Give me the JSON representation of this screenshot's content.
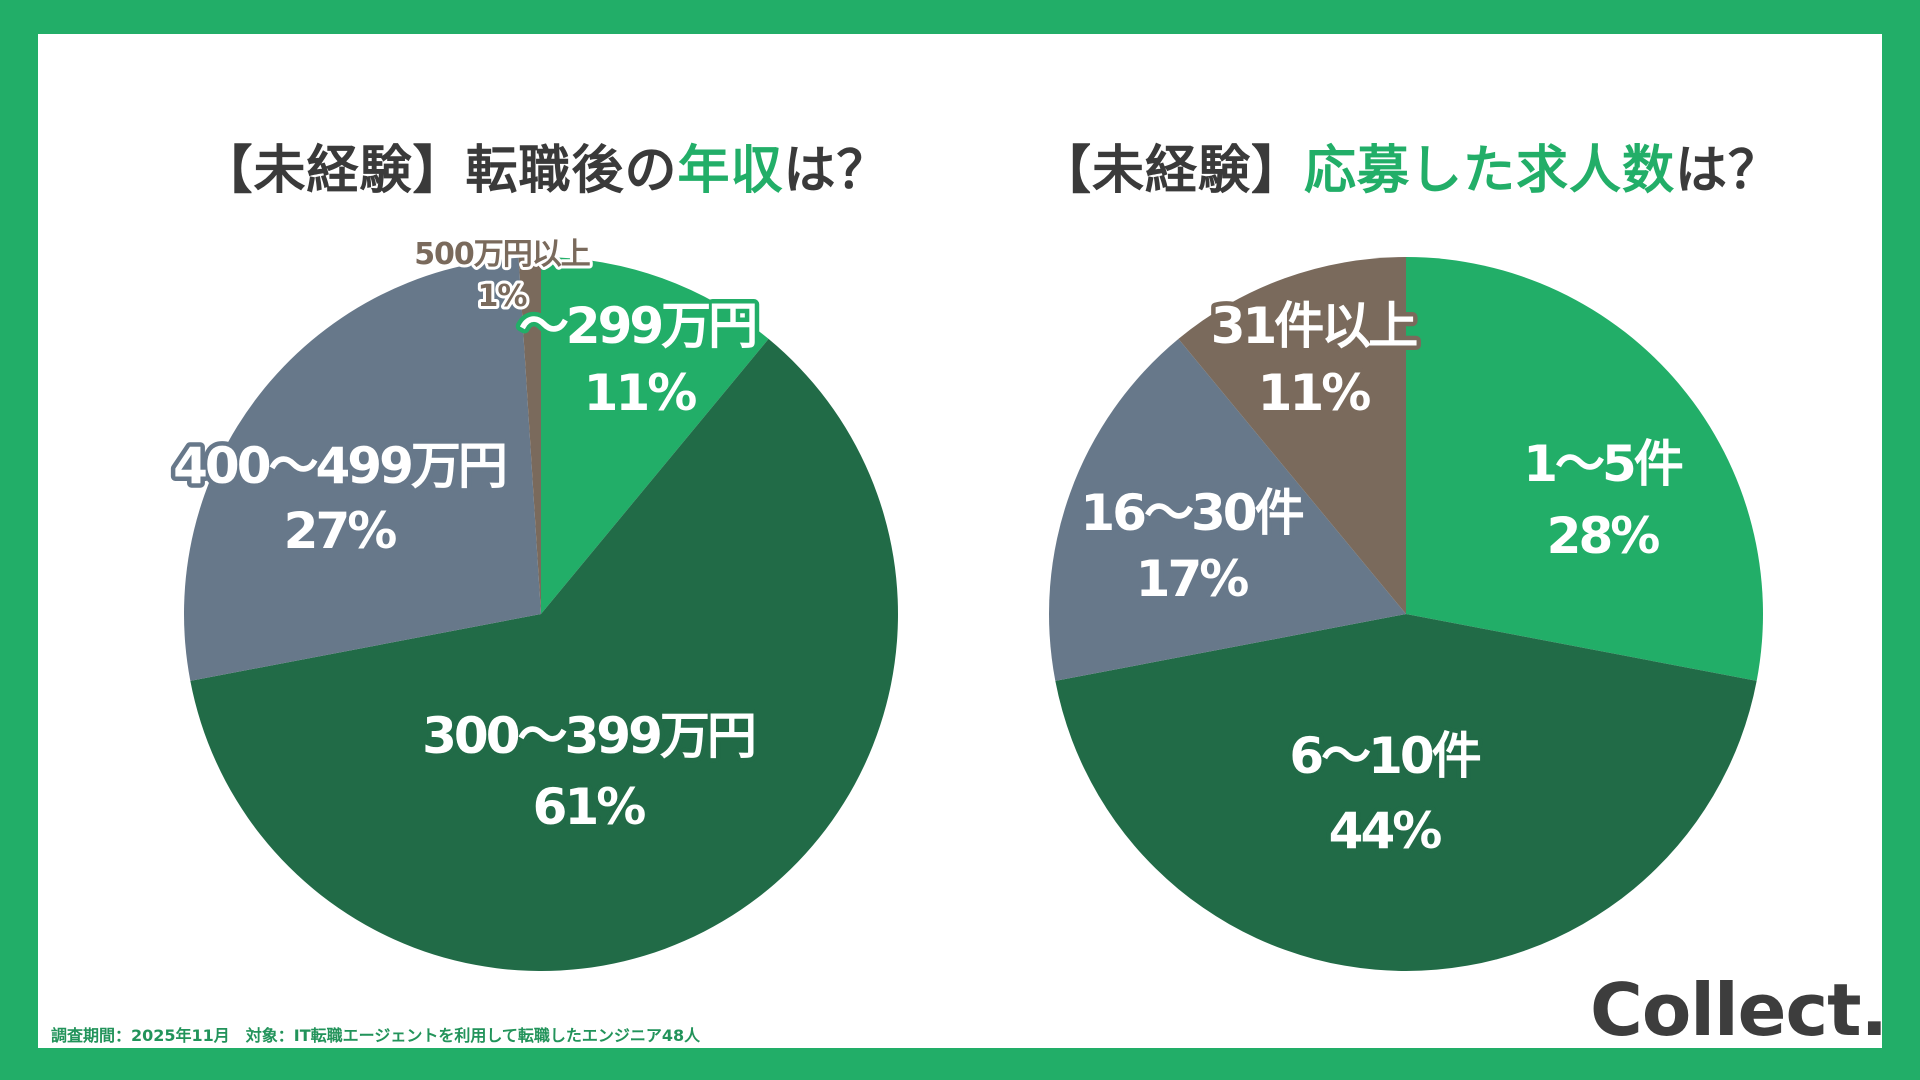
{
  "colors": {
    "frame": "#22ae68",
    "bright_green": "#22ae68",
    "dark_green": "#216b47",
    "slate": "#67788a",
    "brown": "#7a6a5c"
  },
  "chart_data": [
    {
      "type": "pie",
      "title_parts": [
        "【未経験】転職後の",
        "年収",
        "は？"
      ],
      "categories": [
        "〜299万円",
        "300〜399万円",
        "400〜499万円",
        "500万円以上"
      ],
      "values": [
        11,
        61,
        27,
        1
      ],
      "labels": [
        "11%",
        "61%",
        "27%",
        "1%"
      ],
      "colors": [
        "#22ae68",
        "#216b47",
        "#67788a",
        "#7a6a5c"
      ],
      "start": "top",
      "direction": "clockwise"
    },
    {
      "type": "pie",
      "title_parts": [
        "【未経験】",
        "応募した求人数",
        "は？"
      ],
      "categories": [
        "1〜5件",
        "6〜10件",
        "16〜30件",
        "31件以上"
      ],
      "values": [
        28,
        44,
        17,
        11
      ],
      "labels": [
        "28%",
        "44%",
        "17%",
        "11%"
      ],
      "colors": [
        "#22ae68",
        "#216b47",
        "#67788a",
        "#7a6a5c"
      ],
      "start": "top",
      "direction": "clockwise"
    }
  ],
  "footer": "調査期間：2025年11月　対象：IT転職エージェントを利用して転職したエンジニア48人",
  "logo": "Collect."
}
